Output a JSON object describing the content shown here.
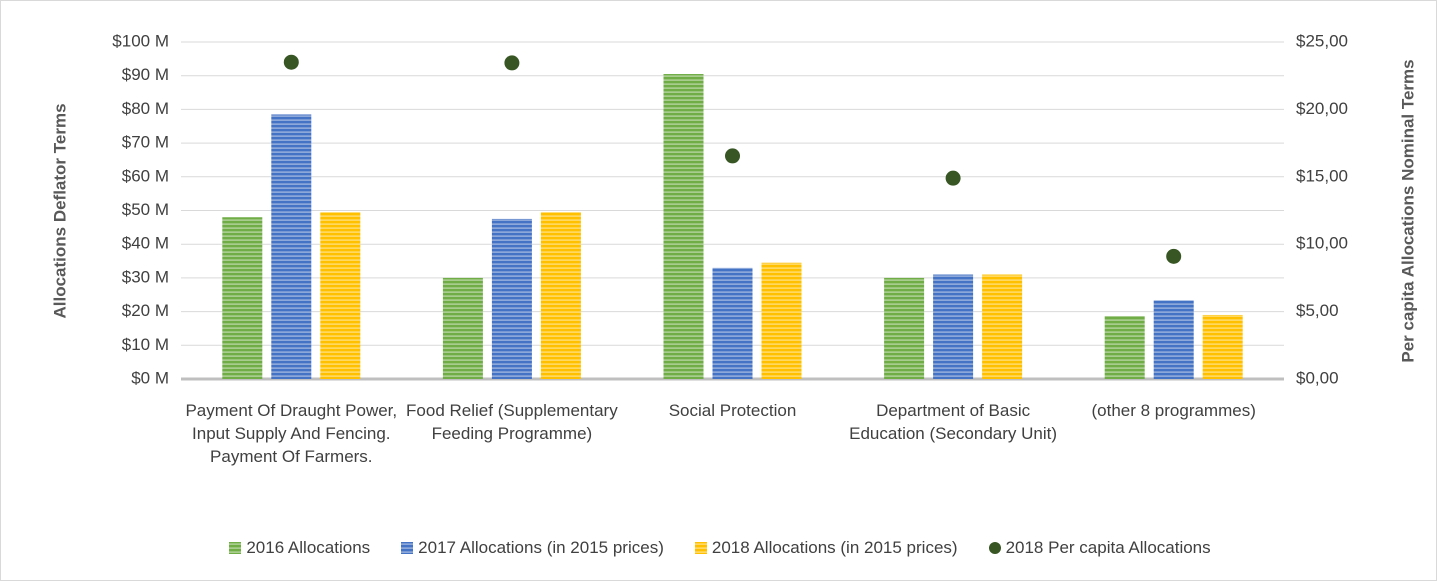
{
  "chart_data": {
    "type": "bar",
    "categories": [
      "Payment Of Draught Power, Input Supply And Fencing. Payment Of Farmers.",
      "Food Relief (Supplementary Feeding Programme)",
      "Social Protection",
      "Department of Basic Education (Secondary Unit)",
      "(other 8 programmes)"
    ],
    "series": [
      {
        "name": "2016 Allocations",
        "color": "#70ad47",
        "values": [
          48,
          30,
          90.5,
          30,
          18.7
        ]
      },
      {
        "name": "2017 Allocations (in 2015 prices)",
        "color": "#4472c4",
        "values": [
          78.5,
          47.5,
          33,
          31,
          23.3
        ]
      },
      {
        "name": "2018 Allocations (in 2015 prices)",
        "color": "#ffc000",
        "values": [
          49.5,
          49.5,
          34.5,
          31,
          19
        ]
      },
      {
        "name": "2018 Per capita Allocations",
        "color": "#375623",
        "type": "scatter",
        "axis": "y2",
        "values": [
          23.5,
          23.45,
          16.55,
          14.9,
          9.1
        ]
      }
    ],
    "y_label": "Allocations Deflator Terms",
    "y2_label": "Per capita Allocations Nominal Terms",
    "ylim": [
      0,
      100
    ],
    "yticks": [
      {
        "value": 0,
        "label": "$0 M"
      },
      {
        "value": 10,
        "label": "$10 M"
      },
      {
        "value": 20,
        "label": "$20 M"
      },
      {
        "value": 30,
        "label": "$30 M"
      },
      {
        "value": 40,
        "label": "$40 M"
      },
      {
        "value": 50,
        "label": "$50 M"
      },
      {
        "value": 60,
        "label": "$60 M"
      },
      {
        "value": 70,
        "label": "$70 M"
      },
      {
        "value": 80,
        "label": "$80 M"
      },
      {
        "value": 90,
        "label": "$90 M"
      },
      {
        "value": 100,
        "label": "$100 M"
      }
    ],
    "y2lim": [
      0,
      25
    ],
    "y2ticks": [
      {
        "value": 0,
        "label": "$0,00"
      },
      {
        "value": 5,
        "label": "$5,00"
      },
      {
        "value": 10,
        "label": "$10,00"
      },
      {
        "value": 15,
        "label": "$15,00"
      },
      {
        "value": 20,
        "label": "$20,00"
      },
      {
        "value": 25,
        "label": "$25,00"
      }
    ],
    "grid": true,
    "legend": "bottom"
  }
}
